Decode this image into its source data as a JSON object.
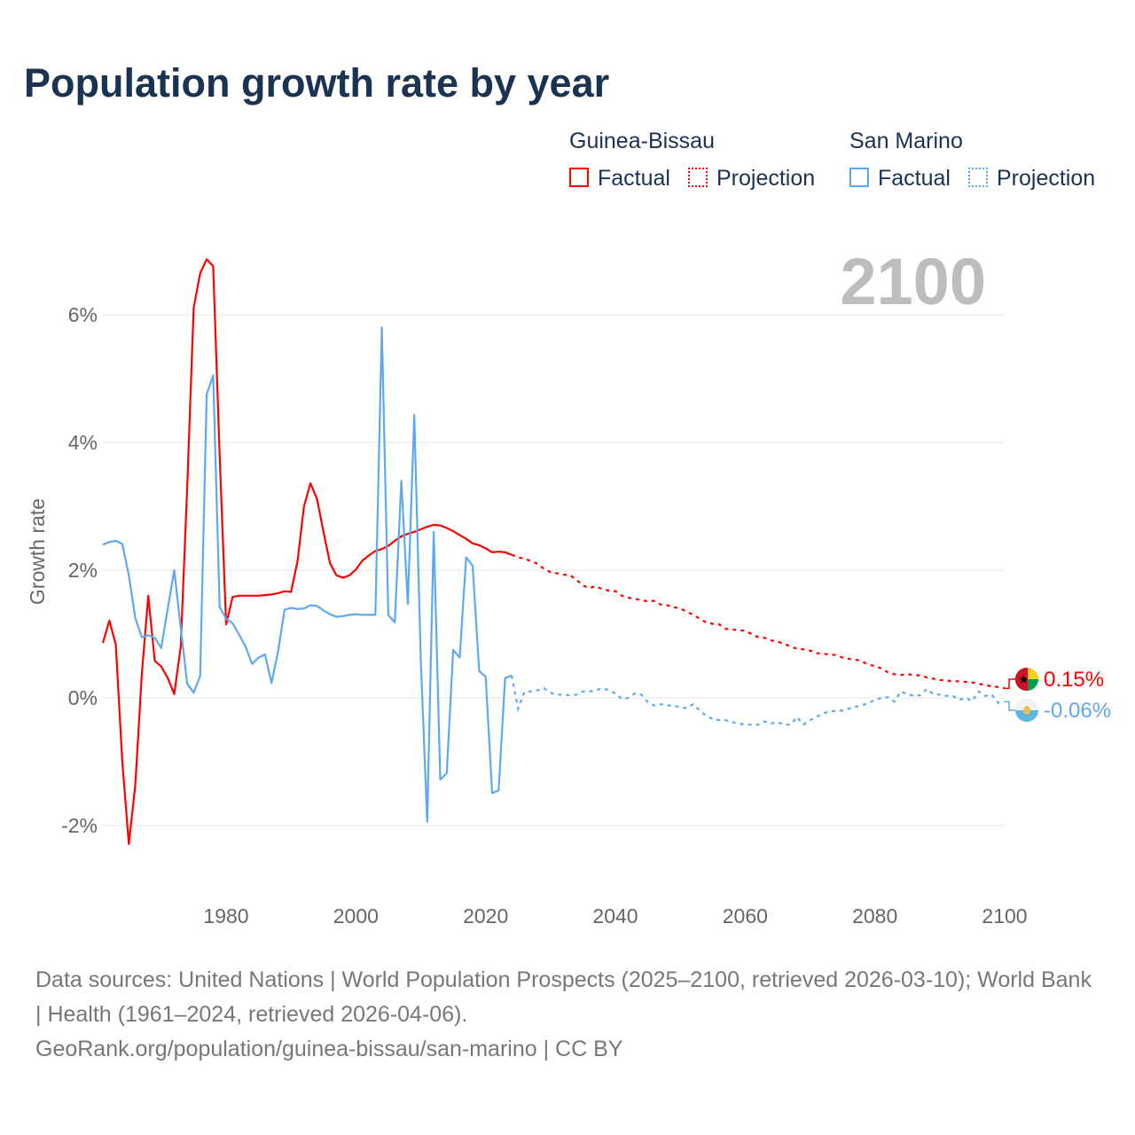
{
  "title": "Population growth rate by year",
  "legend": {
    "groups": [
      {
        "name": "Guinea-Bissau",
        "color": "#ff0000",
        "factual": "Factual",
        "projection": "Projection"
      },
      {
        "name": "San Marino",
        "color": "#5ea9ee",
        "factual": "Factual",
        "projection": "Projection"
      }
    ]
  },
  "year_display": "2100",
  "footer": {
    "line1": "Data sources: United Nations | World Population Prospects (2025–2100, retrieved 2026-03-10); World Bank | Health (1961–2024, retrieved 2026-04-06).",
    "line2": "GeoRank.org/population/guinea-bissau/san-marino | CC BY"
  },
  "chart_data": {
    "type": "line",
    "title": "Population growth rate by year",
    "xlabel": "",
    "ylabel": "Growth rate",
    "xlim": [
      1961,
      2100
    ],
    "ylim": [
      -3,
      7
    ],
    "x_ticks": [
      1980,
      2000,
      2020,
      2040,
      2060,
      2080,
      2100
    ],
    "x_tick_labels": [
      "1980",
      "2000",
      "2020",
      "2040",
      "2060",
      "2080",
      "2100"
    ],
    "y_ticks": [
      -2,
      0,
      2,
      4,
      6
    ],
    "y_tick_labels": [
      "-2%",
      "0%",
      "2%",
      "4%",
      "6%"
    ],
    "grid": true,
    "legend_position": "top-right",
    "series": [
      {
        "name": "Guinea-Bissau",
        "color": "#ff0000",
        "end_label": "0.15%",
        "factual_start": 1961,
        "factual": [
          0.86,
          1.21,
          0.83,
          -1.0,
          -2.29,
          -1.36,
          0.37,
          1.6,
          0.58,
          0.49,
          0.31,
          0.06,
          0.8,
          3.3,
          6.11,
          6.65,
          6.87,
          6.76,
          3.8,
          1.15,
          1.58,
          1.6,
          1.6,
          1.6,
          1.6,
          1.61,
          1.62,
          1.64,
          1.67,
          1.66,
          2.14,
          3.0,
          3.36,
          3.12,
          2.6,
          2.11,
          1.92,
          1.88,
          1.92,
          2.01,
          2.15,
          2.23,
          2.3,
          2.33,
          2.38,
          2.46,
          2.53,
          2.57,
          2.6,
          2.64,
          2.68,
          2.71,
          2.7,
          2.66,
          2.61,
          2.55,
          2.49,
          2.42,
          2.39,
          2.34,
          2.28,
          2.29,
          2.28,
          2.24
        ],
        "projection_start": 2025,
        "projection": [
          2.2,
          2.18,
          2.14,
          2.1,
          2.02,
          1.97,
          1.95,
          1.93,
          1.92,
          1.85,
          1.76,
          1.72,
          1.75,
          1.7,
          1.68,
          1.67,
          1.6,
          1.57,
          1.55,
          1.53,
          1.51,
          1.52,
          1.46,
          1.45,
          1.42,
          1.4,
          1.35,
          1.3,
          1.24,
          1.18,
          1.16,
          1.15,
          1.08,
          1.07,
          1.06,
          1.05,
          1.0,
          0.95,
          0.94,
          0.9,
          0.88,
          0.85,
          0.8,
          0.77,
          0.76,
          0.74,
          0.7,
          0.69,
          0.68,
          0.67,
          0.63,
          0.61,
          0.6,
          0.57,
          0.52,
          0.5,
          0.46,
          0.4,
          0.37,
          0.36,
          0.37,
          0.36,
          0.35,
          0.32,
          0.3,
          0.28,
          0.27,
          0.26,
          0.26,
          0.25,
          0.24,
          0.22,
          0.2,
          0.18,
          0.17,
          0.15
        ]
      },
      {
        "name": "San Marino",
        "color": "#5ea9ee",
        "end_label": "-0.06%",
        "factual_start": 1961,
        "factual": [
          2.4,
          2.44,
          2.46,
          2.41,
          1.92,
          1.25,
          0.95,
          0.98,
          0.94,
          0.78,
          1.4,
          2.0,
          1.1,
          0.22,
          0.08,
          0.34,
          4.75,
          5.05,
          1.42,
          1.24,
          1.17,
          0.99,
          0.8,
          0.53,
          0.63,
          0.68,
          0.23,
          0.72,
          1.38,
          1.41,
          1.39,
          1.4,
          1.45,
          1.44,
          1.37,
          1.31,
          1.27,
          1.28,
          1.3,
          1.31,
          1.3,
          1.3,
          1.3,
          5.8,
          1.3,
          1.18,
          3.4,
          1.47,
          4.43,
          0.6,
          -1.94,
          2.6,
          -1.28,
          -1.18,
          0.75,
          0.63,
          2.2,
          2.07,
          0.42,
          0.33,
          -1.49,
          -1.45,
          0.31,
          0.35
        ],
        "projection_start": 2025,
        "projection": [
          -0.17,
          0.1,
          0.1,
          0.12,
          0.15,
          0.08,
          0.05,
          0.05,
          0.04,
          0.05,
          0.1,
          0.1,
          0.12,
          0.15,
          0.12,
          0.07,
          -0.02,
          0.0,
          0.07,
          0.05,
          -0.07,
          -0.12,
          -0.1,
          -0.12,
          -0.12,
          -0.15,
          -0.16,
          -0.1,
          -0.2,
          -0.28,
          -0.33,
          -0.35,
          -0.35,
          -0.38,
          -0.4,
          -0.42,
          -0.42,
          -0.42,
          -0.37,
          -0.4,
          -0.38,
          -0.42,
          -0.42,
          -0.3,
          -0.42,
          -0.35,
          -0.3,
          -0.24,
          -0.22,
          -0.2,
          -0.2,
          -0.17,
          -0.14,
          -0.12,
          -0.08,
          -0.03,
          0.0,
          0.01,
          -0.06,
          0.1,
          0.06,
          0.03,
          0.04,
          0.14,
          0.06,
          0.05,
          0.03,
          0.03,
          -0.03,
          0.0,
          -0.05,
          0.1,
          0.03,
          0.05,
          -0.08,
          -0.06
        ]
      }
    ]
  }
}
